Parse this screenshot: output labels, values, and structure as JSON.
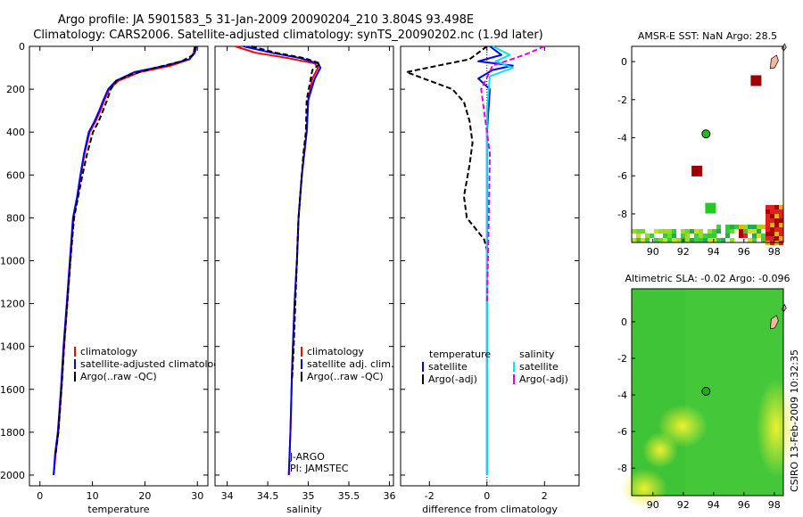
{
  "header": {
    "line1": "Argo profile: JA 5901583_5 31-Jan-2009 20090204_210 3.804S 93.498E",
    "line2": "Climatology: CARS2006. Satellite-adjusted climatology: synTS_20090202.nc (1.9d later)"
  },
  "side_label": "CSIRO 13-Feb-2009 10:32:35",
  "colors": {
    "red": "#ff0000",
    "blue": "#0000ff",
    "black": "#000000",
    "cyan": "#00e5ee",
    "magenta": "#e600e6"
  },
  "chart_data": [
    {
      "id": "temperature",
      "type": "line",
      "xlabel": "temperature",
      "xlim": [
        -2,
        32
      ],
      "ylim": [
        0,
        2050
      ],
      "yticks": [
        0,
        200,
        400,
        600,
        800,
        1000,
        1200,
        1400,
        1600,
        1800,
        2000
      ],
      "xticks": [
        0,
        10,
        20,
        30
      ],
      "legend": [
        "climatology",
        "satellite-adjusted climatology",
        "Argo(..raw -QC)"
      ],
      "series": [
        {
          "name": "climatology",
          "color": "#ff0000",
          "dash": false,
          "x": [
            29.5,
            29.3,
            28.5,
            25,
            19,
            15,
            13.2,
            12.3,
            11.5,
            10.6,
            9.5,
            8.5,
            7.8,
            7.2,
            6.4,
            5.8,
            5.2,
            4.6,
            4.1,
            3.5,
            3.0,
            2.6
          ],
          "y": [
            0,
            30,
            60,
            90,
            120,
            160,
            200,
            250,
            300,
            350,
            400,
            500,
            600,
            700,
            800,
            1000,
            1200,
            1400,
            1600,
            1800,
            1900,
            2000
          ]
        },
        {
          "name": "satellite-adjusted climatology",
          "color": "#0000ff",
          "dash": false,
          "x": [
            29.8,
            29.5,
            28.5,
            24,
            18,
            14.5,
            13,
            12.1,
            11.3,
            10.4,
            9.3,
            8.4,
            7.7,
            7.1,
            6.3,
            5.7,
            5.1,
            4.5,
            4.0,
            3.4,
            2.9,
            2.6
          ],
          "y": [
            0,
            30,
            60,
            90,
            120,
            160,
            200,
            250,
            300,
            350,
            400,
            500,
            600,
            700,
            800,
            1000,
            1200,
            1400,
            1600,
            1800,
            1900,
            2000
          ]
        },
        {
          "name": "Argo(..raw -QC)",
          "color": "#000000",
          "dash": true,
          "x": [
            29.6,
            29.2,
            27,
            22,
            17.5,
            14.6,
            13.5,
            12.8,
            12.0,
            11.2,
            10.1,
            9.0,
            8.1,
            7.3,
            6.5,
            5.8,
            5.2,
            4.6,
            4.1,
            3.5,
            3.0
          ],
          "y": [
            0,
            40,
            70,
            100,
            130,
            160,
            200,
            250,
            300,
            350,
            400,
            500,
            600,
            700,
            800,
            1000,
            1200,
            1400,
            1600,
            1800,
            1900
          ]
        }
      ]
    },
    {
      "id": "salinity",
      "type": "line",
      "xlabel": "salinity",
      "xlim": [
        33.85,
        36.05
      ],
      "ylim": [
        0,
        2050
      ],
      "xticks": [
        34,
        34.5,
        35,
        35.5,
        36
      ],
      "legend": [
        "climatology",
        "satellite adj. clim.",
        "Argo(..raw -QC)"
      ],
      "annotation": [
        "J-ARGO",
        "PI: JAMSTEC"
      ],
      "series": [
        {
          "name": "climatology",
          "color": "#ff0000",
          "dash": false,
          "x": [
            34.1,
            34.35,
            34.75,
            35.08,
            35.12,
            35.05,
            35.0,
            34.98,
            34.95,
            34.92,
            34.88,
            34.86,
            34.83,
            34.8,
            34.78,
            34.76
          ],
          "y": [
            0,
            30,
            55,
            80,
            100,
            150,
            250,
            400,
            500,
            600,
            800,
            1000,
            1200,
            1500,
            1800,
            2000
          ]
        },
        {
          "name": "satellite adj. clim.",
          "color": "#0000ff",
          "dash": false,
          "x": [
            34.2,
            34.55,
            34.9,
            35.12,
            35.15,
            35.08,
            35.0,
            34.98,
            34.95,
            34.92,
            34.88,
            34.86,
            34.83,
            34.8,
            34.78,
            34.76
          ],
          "y": [
            0,
            30,
            55,
            80,
            100,
            150,
            250,
            400,
            500,
            600,
            800,
            1000,
            1200,
            1500,
            1800,
            2000
          ]
        },
        {
          "name": "Argo(..raw -QC)",
          "color": "#000000",
          "dash": true,
          "x": [
            34.3,
            34.6,
            34.95,
            35.15,
            35.05,
            35.02,
            34.98,
            34.97,
            34.94,
            34.92,
            34.88,
            34.86,
            34.84,
            34.82,
            34.8
          ],
          "y": [
            0,
            30,
            55,
            80,
            110,
            170,
            250,
            400,
            500,
            600,
            800,
            1000,
            1200,
            1400,
            1550
          ]
        }
      ]
    },
    {
      "id": "difference",
      "type": "line",
      "xlabel": "difference from climatology",
      "xlim": [
        -3,
        3.2
      ],
      "ylim": [
        0,
        2050
      ],
      "xticks": [
        -2,
        0,
        2
      ],
      "legend_left_title": "temperature",
      "legend_left": [
        "satellite",
        "Argo(-adj)"
      ],
      "legend_right_title": "salinity",
      "legend_right": [
        "satellite",
        "Argo(-adj)"
      ],
      "series": [
        {
          "name": "temperature satellite",
          "color": "#0000ff",
          "dash": false,
          "x": [
            0.1,
            0.5,
            -0.3,
            0.9,
            0.2,
            -0.3,
            0.1,
            0.0,
            0.0,
            0.0,
            0.0,
            0.0,
            0.0
          ],
          "y": [
            0,
            40,
            70,
            90,
            110,
            150,
            200,
            400,
            600,
            800,
            1200,
            1600,
            2000
          ]
        },
        {
          "name": "temperature Argo(-adj)",
          "color": "#000000",
          "dash": true,
          "x": [
            0.0,
            -0.6,
            -2.8,
            -1.2,
            -0.8,
            -0.6,
            -0.5,
            -0.6,
            -0.8,
            -0.7,
            -0.4,
            -0.1,
            0.0
          ],
          "y": [
            0,
            60,
            120,
            200,
            260,
            350,
            450,
            550,
            700,
            800,
            850,
            900,
            950
          ]
        },
        {
          "name": "salinity satellite",
          "color": "#00e5ee",
          "dash": false,
          "x": [
            0.2,
            0.8,
            0.3,
            0.9,
            0.1,
            0.0,
            0.0,
            0.0,
            0.0
          ],
          "y": [
            0,
            40,
            70,
            100,
            140,
            300,
            800,
            1400,
            2000
          ]
        },
        {
          "name": "salinity Argo(-adj)",
          "color": "#e600e6",
          "dash": true,
          "x": [
            2.0,
            1.3,
            0.2,
            -0.2,
            0.1,
            0.05,
            0.0
          ],
          "y": [
            0,
            40,
            90,
            200,
            500,
            900,
            1200
          ]
        }
      ]
    },
    {
      "id": "amsre_sst",
      "type": "heatmap",
      "title": "AMSR-E SST: NaN Argo: 28.5",
      "xlim": [
        88.6,
        98.6
      ],
      "ylim": [
        -9.5,
        0.8
      ],
      "xticks": [
        90,
        92,
        94,
        96,
        98
      ],
      "yticks": [
        0,
        -2,
        -4,
        -6,
        -8
      ],
      "points": [
        {
          "lon": 96.8,
          "lat": -1.0,
          "color": "#a00000"
        },
        {
          "lon": 92.9,
          "lat": -5.75,
          "color": "#a00000"
        },
        {
          "lon": 93.8,
          "lat": -7.7,
          "color": "#22cc22"
        }
      ],
      "argo": {
        "lon": 93.5,
        "lat": -3.8,
        "color": "#22bb22"
      }
    },
    {
      "id": "altimetric_sla",
      "type": "heatmap",
      "title": "Altimetric SLA: -0.02 Argo: -0.096",
      "xlim": [
        88.6,
        98.6
      ],
      "ylim": [
        -9.5,
        1.8
      ],
      "xticks": [
        90,
        92,
        94,
        96,
        98
      ],
      "yticks": [
        0,
        -2,
        -4,
        -6,
        -8
      ],
      "argo": {
        "lon": 93.5,
        "lat": -3.8,
        "color": "#22aa22"
      }
    }
  ]
}
